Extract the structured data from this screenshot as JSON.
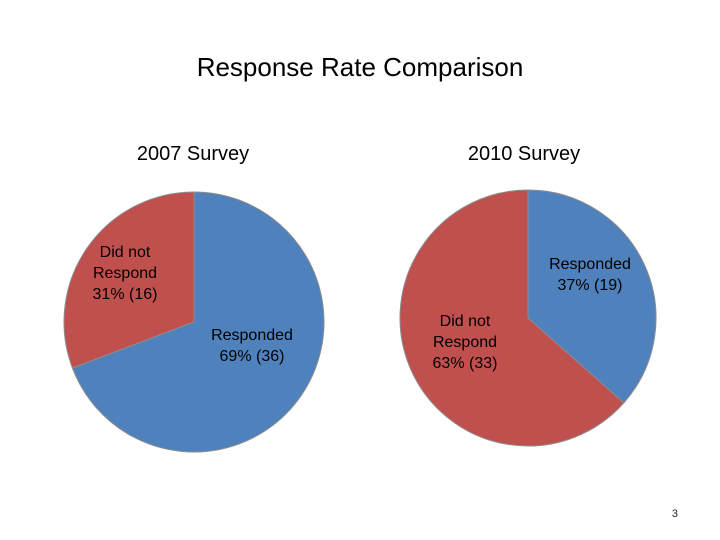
{
  "slide": {
    "title": "Response Rate Comparison",
    "page_number": "3"
  },
  "colors": {
    "responded": "#4F81BD",
    "did_not_respond": "#C0504D",
    "edge": "#8c8c8c"
  },
  "chart_data": [
    {
      "type": "pie",
      "title": "2007 Survey",
      "slices": [
        {
          "name": "Did not Respond",
          "label_lines": [
            "Did not",
            "Respond",
            "31% (16)"
          ],
          "value": 16,
          "percent": 31,
          "color": "#C0504D"
        },
        {
          "name": "Responded",
          "label_lines": [
            "Responded",
            "69% (36)"
          ],
          "value": 36,
          "percent": 69,
          "color": "#4F81BD"
        }
      ],
      "start_angle_deg": -90,
      "direction": "counterclockwise-first-slice"
    },
    {
      "type": "pie",
      "title": "2010 Survey",
      "slices": [
        {
          "name": "Responded",
          "label_lines": [
            "Responded",
            "37% (19)"
          ],
          "value": 19,
          "percent": 37,
          "color": "#4F81BD"
        },
        {
          "name": "Did not Respond",
          "label_lines": [
            "Did not",
            "Respond",
            "63% (33)"
          ],
          "value": 33,
          "percent": 63,
          "color": "#C0504D"
        }
      ],
      "start_angle_deg": -90,
      "direction": "clockwise"
    }
  ]
}
